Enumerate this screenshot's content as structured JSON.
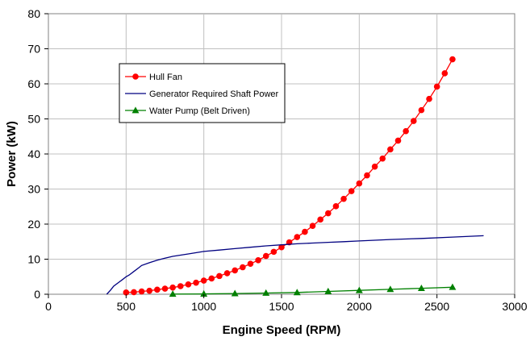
{
  "chart_data": {
    "type": "line",
    "title": "",
    "xlabel": "Engine Speed (RPM)",
    "ylabel": "Power (kW)",
    "xlim": [
      0,
      3000
    ],
    "ylim": [
      0,
      80
    ],
    "xticks": [
      0,
      500,
      1000,
      1500,
      2000,
      2500,
      3000
    ],
    "yticks": [
      0,
      10,
      20,
      30,
      40,
      50,
      60,
      70,
      80
    ],
    "grid": true,
    "legend_placement": "upper-left",
    "series": [
      {
        "name": "Hull Fan",
        "color": "#ff0000",
        "marker": "circle",
        "x": [
          500,
          550,
          600,
          650,
          700,
          750,
          800,
          850,
          900,
          950,
          1000,
          1050,
          1100,
          1150,
          1200,
          1250,
          1300,
          1350,
          1400,
          1450,
          1500,
          1550,
          1600,
          1650,
          1700,
          1750,
          1800,
          1850,
          1900,
          1950,
          2000,
          2050,
          2100,
          2150,
          2200,
          2250,
          2300,
          2350,
          2400,
          2450,
          2500,
          2550,
          2600
        ],
        "y": [
          0.5,
          0.6,
          0.8,
          1.0,
          1.3,
          1.6,
          1.9,
          2.3,
          2.8,
          3.3,
          3.9,
          4.5,
          5.2,
          6.0,
          6.8,
          7.7,
          8.7,
          9.7,
          10.9,
          12.1,
          13.4,
          14.8,
          16.3,
          17.8,
          19.5,
          21.3,
          23.1,
          25.1,
          27.2,
          29.4,
          31.6,
          33.9,
          36.4,
          38.7,
          41.3,
          43.8,
          46.5,
          49.4,
          52.5,
          55.7,
          59.2,
          63.0,
          67.0
        ]
      },
      {
        "name": "Generator Required Shaft Power",
        "color": "#000080",
        "marker": "none",
        "x": [
          375,
          400,
          420,
          450,
          480,
          500,
          520,
          550,
          580,
          600,
          650,
          700,
          750,
          800,
          900,
          1000,
          1100,
          1200,
          1300,
          1400,
          1500,
          1600,
          1700,
          1800,
          1900,
          2000,
          2200,
          2400,
          2600,
          2800
        ],
        "y": [
          0,
          1.2,
          2.3,
          3.3,
          4.3,
          5.0,
          5.5,
          6.5,
          7.5,
          8.2,
          9.0,
          9.7,
          10.3,
          10.8,
          11.5,
          12.2,
          12.6,
          13.0,
          13.4,
          13.8,
          14.1,
          14.4,
          14.6,
          14.8,
          15.0,
          15.2,
          15.6,
          15.9,
          16.3,
          16.7
        ]
      },
      {
        "name": "Water Pump (Belt Driven)",
        "color": "#008000",
        "marker": "triangle",
        "x": [
          800,
          1000,
          1200,
          1400,
          1600,
          1800,
          2000,
          2200,
          2400,
          2600
        ],
        "y": [
          0.05,
          0.1,
          0.2,
          0.35,
          0.5,
          0.8,
          1.1,
          1.4,
          1.7,
          2.0
        ]
      }
    ]
  }
}
